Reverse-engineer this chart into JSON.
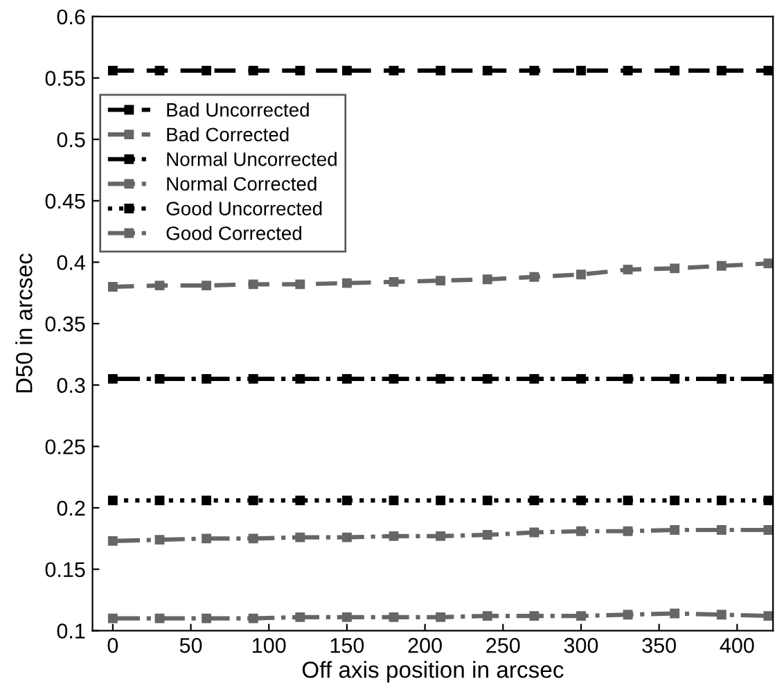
{
  "chart_data": {
    "type": "line",
    "xlabel": "Off axis position in arcsec",
    "ylabel": "D50 in arcsec",
    "x": [
      0,
      30,
      60,
      90,
      120,
      150,
      180,
      210,
      240,
      270,
      300,
      330,
      360,
      390,
      420
    ],
    "xlim": [
      -13,
      423
    ],
    "xticks": [
      0,
      50,
      100,
      150,
      200,
      250,
      300,
      350,
      400
    ],
    "ylim": [
      0.1,
      0.6
    ],
    "yticks": [
      0.1,
      0.15,
      0.2,
      0.25,
      0.3,
      0.35,
      0.4,
      0.45,
      0.5,
      0.55,
      0.6
    ],
    "marker": "square",
    "grid": false,
    "legend": "top left",
    "series": [
      {
        "name": "Bad Uncorrected",
        "color": "#000000",
        "line_style": "dashed",
        "values": [
          0.556,
          0.556,
          0.556,
          0.556,
          0.556,
          0.556,
          0.556,
          0.556,
          0.556,
          0.556,
          0.556,
          0.556,
          0.556,
          0.556,
          0.556
        ]
      },
      {
        "name": "Bad Corrected",
        "color": "#666666",
        "line_style": "dashed",
        "values": [
          0.38,
          0.381,
          0.381,
          0.382,
          0.382,
          0.383,
          0.384,
          0.385,
          0.386,
          0.388,
          0.39,
          0.394,
          0.395,
          0.397,
          0.399
        ]
      },
      {
        "name": "Normal Uncorrected",
        "color": "#000000",
        "line_style": "dashdot",
        "values": [
          0.305,
          0.305,
          0.305,
          0.305,
          0.305,
          0.305,
          0.305,
          0.305,
          0.305,
          0.305,
          0.305,
          0.305,
          0.305,
          0.305,
          0.305
        ]
      },
      {
        "name": "Normal Corrected",
        "color": "#666666",
        "line_style": "dashdot",
        "values": [
          0.173,
          0.174,
          0.175,
          0.175,
          0.176,
          0.176,
          0.177,
          0.177,
          0.178,
          0.18,
          0.181,
          0.181,
          0.182,
          0.182,
          0.182
        ]
      },
      {
        "name": "Good Uncorrected",
        "color": "#000000",
        "line_style": "dotted",
        "values": [
          0.206,
          0.206,
          0.206,
          0.206,
          0.206,
          0.206,
          0.206,
          0.206,
          0.206,
          0.206,
          0.206,
          0.206,
          0.206,
          0.206,
          0.206
        ]
      },
      {
        "name": "Good Corrected",
        "color": "#666666",
        "line_style": "dashdot",
        "values": [
          0.11,
          0.11,
          0.11,
          0.11,
          0.111,
          0.111,
          0.111,
          0.111,
          0.112,
          0.112,
          0.112,
          0.113,
          0.114,
          0.113,
          0.112
        ]
      }
    ]
  }
}
